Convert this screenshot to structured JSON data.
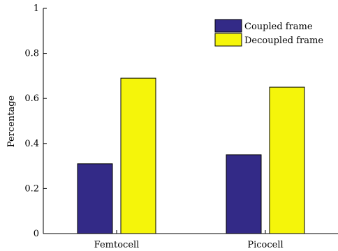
{
  "chart_data": {
    "type": "bar",
    "title": "",
    "xlabel": "",
    "ylabel": "Percentage",
    "categories": [
      "Femtocell",
      "Picocell"
    ],
    "series": [
      {
        "name": "Coupled frame",
        "values": [
          0.31,
          0.35
        ],
        "color": "#332a87"
      },
      {
        "name": "Decoupled frame",
        "values": [
          0.69,
          0.65
        ],
        "color": "#f5f50a"
      }
    ],
    "ylim": [
      0,
      1
    ],
    "yticks": [
      "0",
      "0.2",
      "0.4",
      "0.6",
      "0.8",
      "1"
    ],
    "grid": false,
    "legend_position": "top-right"
  }
}
